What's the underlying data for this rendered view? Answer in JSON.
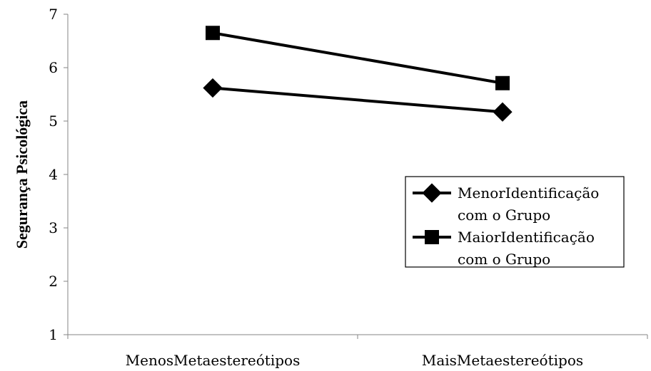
{
  "chart_data": {
    "type": "line",
    "title": "",
    "xlabel": "",
    "ylabel": "Segurança Psicológica",
    "ylim": [
      1,
      7
    ],
    "yticks": [
      1,
      2,
      3,
      4,
      5,
      6,
      7
    ],
    "categories": [
      "MenosMetaestereótipos",
      "MaisMetaestereótipos"
    ],
    "grid": false,
    "legend_position": "right",
    "series": [
      {
        "name_lines": [
          "MenorIdentificação",
          "com o Grupo"
        ],
        "marker": "diamond",
        "color": "#000000",
        "values": [
          5.62,
          5.17
        ]
      },
      {
        "name_lines": [
          "MaiorIdentificação",
          "com o Grupo"
        ],
        "marker": "square",
        "color": "#000000",
        "values": [
          6.65,
          5.71
        ]
      }
    ]
  }
}
